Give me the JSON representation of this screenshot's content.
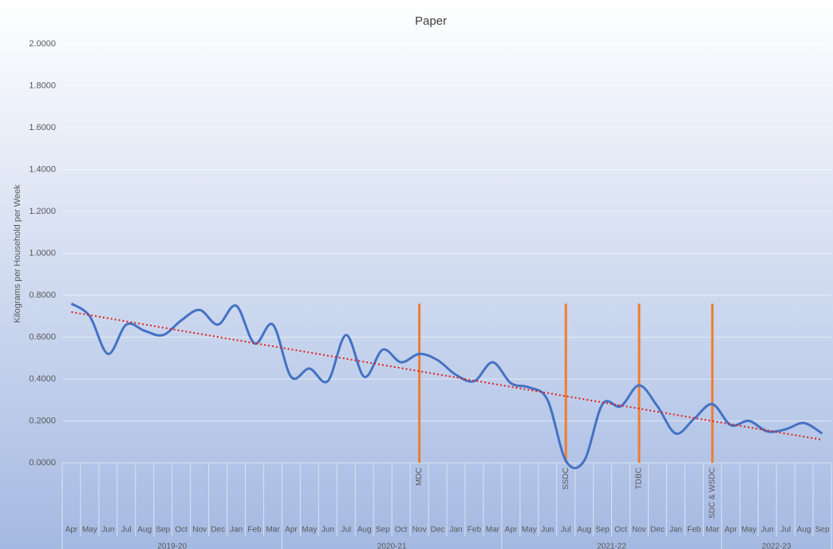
{
  "chart_data": {
    "type": "line",
    "title": "Paper",
    "y_label": "Kilograms per Household per Week",
    "categories": [
      "Apr",
      "May",
      "Jun",
      "Jul",
      "Aug",
      "Sep",
      "Oct",
      "Nov",
      "Dec",
      "Jan",
      "Feb",
      "Mar",
      "Apr",
      "May",
      "Jun",
      "Jul",
      "Aug",
      "Sep",
      "Oct",
      "Nov",
      "Dec",
      "Jan",
      "Feb",
      "Mar",
      "Apr",
      "May",
      "Jun",
      "Jul",
      "Aug",
      "Sep",
      "Oct",
      "Nov",
      "Dec",
      "Jan",
      "Feb",
      "Mar",
      "Apr",
      "May",
      "Jun",
      "Jul",
      "Aug",
      "Sep"
    ],
    "groups": [
      {
        "label": "2019-20",
        "count": 12
      },
      {
        "label": "2020-21",
        "count": 12
      },
      {
        "label": "2021-22",
        "count": 12
      },
      {
        "label": "2022-23",
        "count": 6
      }
    ],
    "series": [
      {
        "color": "#4472c4",
        "values": [
          0.76,
          0.7,
          0.52,
          0.66,
          0.63,
          0.61,
          0.68,
          0.73,
          0.66,
          0.75,
          0.57,
          0.66,
          0.41,
          0.45,
          0.39,
          0.61,
          0.41,
          0.54,
          0.48,
          0.52,
          0.49,
          0.42,
          0.39,
          0.48,
          0.38,
          0.36,
          0.3,
          0.01,
          0.01,
          0.28,
          0.27,
          0.37,
          0.27,
          0.14,
          0.21,
          0.28,
          0.18,
          0.2,
          0.15,
          0.16,
          0.19,
          0.14
        ]
      }
    ],
    "trendline": {
      "color": "#e0201b",
      "start": 0.72,
      "end": 0.11
    },
    "annotations": {
      "color": "#ed7d31",
      "top": 0.76,
      "items": [
        {
          "index": 19,
          "label": "MDC"
        },
        {
          "index": 27,
          "label": "SSDC"
        },
        {
          "index": 31,
          "label": "TDBC"
        },
        {
          "index": 35,
          "label": "SDC & WSDC"
        }
      ]
    },
    "ylim": [
      0,
      2
    ],
    "yticks": [
      {
        "value": 0,
        "label": "0.0000"
      },
      {
        "value": 0.2,
        "label": "0.2000"
      },
      {
        "value": 0.4,
        "label": "0.4000"
      },
      {
        "value": 0.6,
        "label": "0.6000"
      },
      {
        "value": 0.8,
        "label": "0.8000"
      },
      {
        "value": 1.0,
        "label": "1.0000"
      },
      {
        "value": 1.2,
        "label": "1.2000"
      },
      {
        "value": 1.4,
        "label": "1.4000"
      },
      {
        "value": 1.6,
        "label": "1.6000"
      },
      {
        "value": 1.8,
        "label": "1.8000"
      },
      {
        "value": 2.0,
        "label": "2.0000"
      }
    ],
    "grid": true
  }
}
